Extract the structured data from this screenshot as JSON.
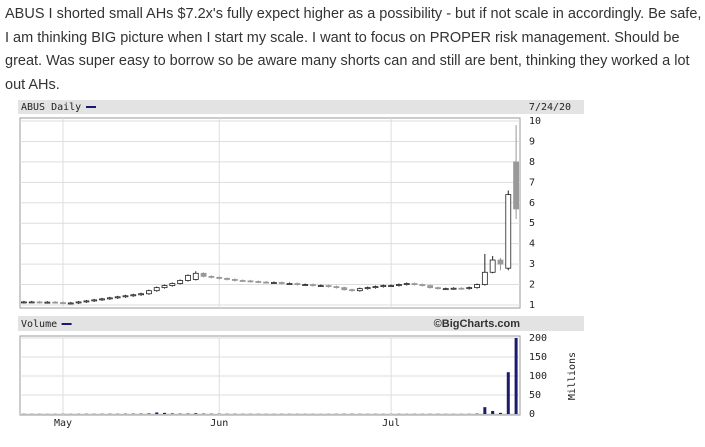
{
  "post": {
    "text": "ABUS I shorted small AHs $7.2x's fully expect higher as a possibility - but if not scale in accordingly. Be safe, I am thinking BIG picture when I start my scale. I want to focus on PROPER risk management. Should be great. Was super easy to borrow so be aware many shorts can and still are bent, thinking they worked a lot out AHs."
  },
  "chart_data": [
    {
      "type": "candlestick",
      "date_label": "7/24/20",
      "series": [
        {
          "name": "ABUS Daily",
          "color": "#1a1a6e",
          "up_color": "#ffffff",
          "down_color": "#999999",
          "open": [
            1.12,
            1.15,
            1.15,
            1.12,
            1.14,
            1.12,
            1.08,
            1.1,
            1.15,
            1.2,
            1.25,
            1.3,
            1.35,
            1.4,
            1.45,
            1.5,
            1.55,
            1.7,
            1.85,
            1.95,
            2.05,
            2.2,
            2.25,
            2.55,
            2.4,
            2.35,
            2.3,
            2.25,
            2.2,
            2.18,
            2.15,
            2.12,
            2.1,
            2.1,
            2.05,
            2.05,
            2.0,
            2.0,
            1.95,
            1.95,
            1.9,
            1.85,
            1.75,
            1.7,
            1.8,
            1.85,
            1.9,
            1.95,
            1.95,
            2.0,
            2.05,
            2.0,
            1.95,
            1.85,
            1.8,
            1.8,
            1.82,
            1.8,
            1.85,
            2.0,
            2.6,
            3.2,
            2.8,
            8.0
          ],
          "high": [
            1.2,
            1.2,
            1.2,
            1.19,
            1.19,
            1.17,
            1.15,
            1.2,
            1.25,
            1.3,
            1.35,
            1.4,
            1.45,
            1.5,
            1.55,
            1.6,
            1.75,
            1.9,
            2.0,
            2.1,
            2.25,
            2.5,
            2.65,
            2.6,
            2.45,
            2.4,
            2.35,
            2.3,
            2.25,
            2.23,
            2.2,
            2.17,
            2.15,
            2.15,
            2.1,
            2.1,
            2.05,
            2.05,
            2.0,
            2.0,
            1.95,
            1.9,
            1.8,
            1.85,
            1.9,
            1.95,
            2.0,
            2.0,
            2.05,
            2.1,
            2.1,
            2.05,
            2.0,
            1.9,
            1.85,
            1.87,
            1.87,
            1.9,
            2.05,
            3.5,
            3.4,
            3.3,
            6.6,
            9.8
          ],
          "low": [
            1.07,
            1.1,
            1.07,
            1.07,
            1.07,
            1.03,
            1.03,
            1.05,
            1.1,
            1.15,
            1.2,
            1.25,
            1.3,
            1.35,
            1.4,
            1.45,
            1.5,
            1.65,
            1.8,
            1.9,
            2.0,
            2.15,
            2.2,
            2.35,
            2.3,
            2.25,
            2.2,
            2.15,
            2.13,
            2.1,
            2.07,
            2.05,
            2.05,
            2.0,
            2.0,
            1.95,
            1.95,
            1.9,
            1.9,
            1.85,
            1.8,
            1.7,
            1.65,
            1.65,
            1.75,
            1.8,
            1.85,
            1.9,
            1.9,
            1.95,
            1.95,
            1.9,
            1.8,
            1.75,
            1.75,
            1.75,
            1.75,
            1.75,
            1.8,
            1.95,
            2.55,
            2.7,
            2.7,
            5.2
          ],
          "close": [
            1.15,
            1.15,
            1.12,
            1.14,
            1.12,
            1.08,
            1.1,
            1.15,
            1.2,
            1.25,
            1.3,
            1.35,
            1.4,
            1.45,
            1.5,
            1.55,
            1.7,
            1.85,
            1.95,
            2.05,
            2.2,
            2.45,
            2.55,
            2.4,
            2.35,
            2.3,
            2.25,
            2.2,
            2.18,
            2.15,
            2.12,
            2.1,
            2.1,
            2.05,
            2.05,
            2.0,
            2.0,
            1.95,
            1.95,
            1.9,
            1.85,
            1.75,
            1.7,
            1.8,
            1.85,
            1.9,
            1.95,
            1.95,
            2.0,
            2.05,
            2.0,
            1.95,
            1.85,
            1.8,
            1.8,
            1.82,
            1.8,
            1.85,
            2.0,
            2.6,
            3.2,
            3.0,
            6.4,
            5.7
          ]
        }
      ],
      "ylim": [
        1,
        10
      ],
      "yticks": [
        1,
        2,
        3,
        4,
        5,
        6,
        7,
        8,
        9,
        10
      ],
      "grid": true
    },
    {
      "type": "bar",
      "source": "©BigCharts.com",
      "ylabel": "Millions",
      "categories": [
        null,
        null,
        null,
        null,
        null,
        "May",
        null,
        null,
        null,
        null,
        null,
        null,
        null,
        null,
        null,
        null,
        null,
        null,
        null,
        null,
        null,
        null,
        null,
        null,
        null,
        "Jun",
        null,
        null,
        null,
        null,
        null,
        null,
        null,
        null,
        null,
        null,
        null,
        null,
        null,
        null,
        null,
        null,
        null,
        null,
        null,
        null,
        null,
        "Jul",
        null,
        null,
        null,
        null,
        null,
        null,
        null,
        null,
        null,
        null,
        null,
        null,
        null,
        null,
        null,
        null
      ],
      "series": [
        {
          "name": "Volume",
          "color": "#1a1a6e",
          "values": [
            0.5,
            0.4,
            0.4,
            0.3,
            0.4,
            0.5,
            0.4,
            0.5,
            0.6,
            0.5,
            0.6,
            0.7,
            0.6,
            0.8,
            0.9,
            1,
            1.5,
            4,
            3,
            1.5,
            1,
            1.2,
            2,
            1,
            0.8,
            0.7,
            0.6,
            0.6,
            0.5,
            0.5,
            0.5,
            0.4,
            0.4,
            0.5,
            0.4,
            0.4,
            0.4,
            0.4,
            0.3,
            0.4,
            0.5,
            0.6,
            0.7,
            0.5,
            0.4,
            0.5,
            0.4,
            0.4,
            0.5,
            0.4,
            0.4,
            0.4,
            0.5,
            0.5,
            0.4,
            0.4,
            0.4,
            0.5,
            1,
            18,
            8,
            3,
            110,
            200
          ]
        }
      ],
      "ylim": [
        0,
        200
      ],
      "yticks": [
        0,
        50,
        100,
        150,
        200
      ],
      "grid": true
    }
  ]
}
